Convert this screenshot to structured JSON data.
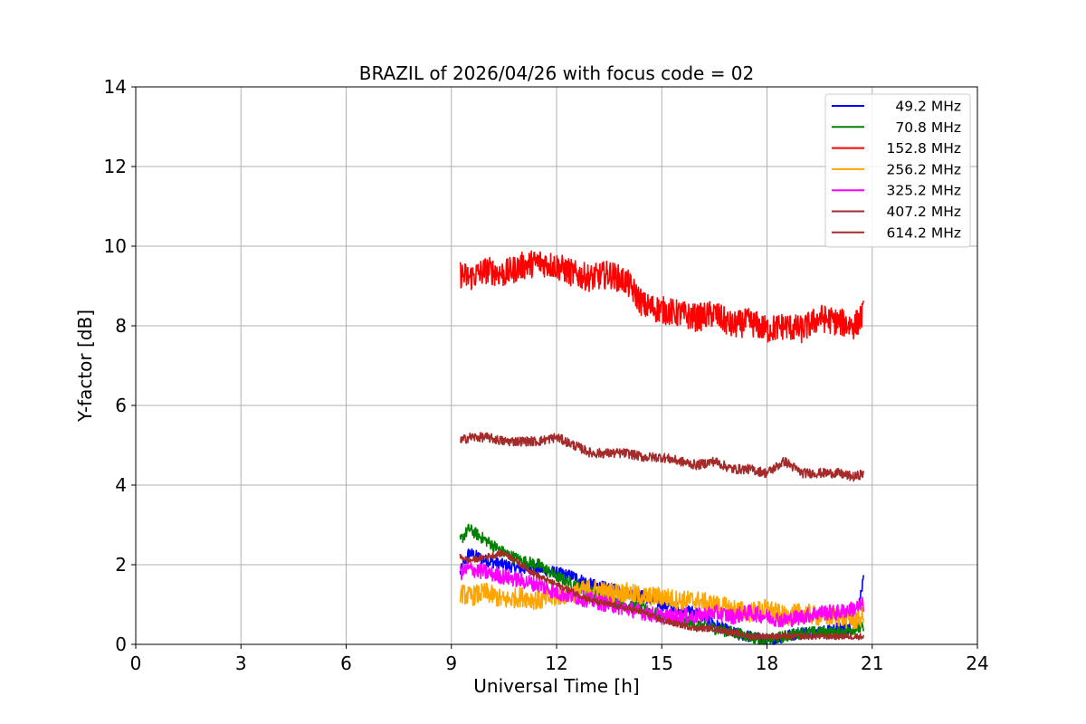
{
  "chart_data": {
    "type": "line",
    "title": "BRAZIL of 2026/04/26 with focus code = 02",
    "xlabel": "Universal Time [h]",
    "ylabel": "Y-factor [dB]",
    "xlim": [
      0,
      24
    ],
    "ylim": [
      0,
      14
    ],
    "xticks": [
      0,
      3,
      6,
      9,
      12,
      15,
      18,
      21,
      24
    ],
    "yticks": [
      0,
      2,
      4,
      6,
      8,
      10,
      12,
      14
    ],
    "grid": true,
    "legend_position": "top-right",
    "series": [
      {
        "name": " 49.2 MHz",
        "color": "#0000ff",
        "noise": 0.15,
        "x": [
          9.25,
          9.5,
          10,
          10.5,
          11,
          11.5,
          12,
          12.5,
          13,
          13.5,
          14,
          14.5,
          15,
          15.5,
          16,
          16.5,
          17,
          17.5,
          18,
          18.5,
          19,
          19.5,
          20,
          20.5,
          20.75
        ],
        "y": [
          1.8,
          2.3,
          2.1,
          2.0,
          1.9,
          1.9,
          1.8,
          1.7,
          1.5,
          1.4,
          1.3,
          1.2,
          1.0,
          0.9,
          0.8,
          0.5,
          0.3,
          0.2,
          0.1,
          0.2,
          0.3,
          0.3,
          0.4,
          0.4,
          1.6
        ]
      },
      {
        "name": " 70.8 MHz",
        "color": "#008000",
        "noise": 0.15,
        "x": [
          9.25,
          9.5,
          10,
          10.5,
          11,
          11.5,
          12,
          12.5,
          13,
          13.5,
          14,
          14.5,
          15,
          15.5,
          16,
          16.5,
          17,
          17.5,
          18,
          18.5,
          19,
          19.5,
          20,
          20.5,
          20.75
        ],
        "y": [
          2.6,
          2.9,
          2.6,
          2.3,
          2.1,
          2.0,
          1.7,
          1.5,
          1.3,
          1.1,
          1.0,
          0.9,
          0.7,
          0.6,
          0.5,
          0.4,
          0.3,
          0.2,
          0.1,
          0.2,
          0.3,
          0.3,
          0.3,
          0.4,
          0.4
        ]
      },
      {
        "name": " 152.8 MHz",
        "color": "#ff0000",
        "noise": 0.35,
        "x": [
          9.25,
          9.5,
          10,
          10.5,
          11,
          11.5,
          12,
          12.5,
          13,
          13.5,
          14,
          14.5,
          15,
          15.5,
          16,
          16.5,
          17,
          17.5,
          18,
          18.5,
          19,
          19.5,
          20,
          20.5,
          20.75
        ],
        "y": [
          9.3,
          9.2,
          9.4,
          9.3,
          9.5,
          9.6,
          9.5,
          9.3,
          9.2,
          9.3,
          9.1,
          8.5,
          8.4,
          8.3,
          8.2,
          8.3,
          8.0,
          8.1,
          7.9,
          8.0,
          7.9,
          8.2,
          8.1,
          8.0,
          8.3
        ]
      },
      {
        "name": " 256.2 MHz",
        "color": "#ffa500",
        "noise": 0.25,
        "x": [
          9.25,
          9.5,
          10,
          10.5,
          11,
          11.5,
          12,
          12.5,
          13,
          13.5,
          14,
          14.5,
          15,
          15.5,
          16,
          16.5,
          17,
          17.5,
          18,
          18.5,
          19,
          19.5,
          20,
          20.5,
          20.75
        ],
        "y": [
          1.3,
          1.2,
          1.3,
          1.1,
          1.2,
          1.1,
          1.2,
          1.3,
          1.4,
          1.3,
          1.3,
          1.2,
          1.2,
          1.1,
          1.1,
          1.0,
          0.9,
          0.8,
          0.9,
          0.7,
          0.8,
          0.7,
          0.7,
          0.6,
          0.7
        ]
      },
      {
        "name": " 325.2 MHz",
        "color": "#ff00ff",
        "noise": 0.2,
        "x": [
          9.25,
          9.5,
          10,
          10.5,
          11,
          11.5,
          12,
          12.5,
          13,
          13.5,
          14,
          14.5,
          15,
          15.5,
          16,
          16.5,
          17,
          17.5,
          18,
          18.5,
          19,
          19.5,
          20,
          20.5,
          20.75
        ],
        "y": [
          1.8,
          1.9,
          1.8,
          1.7,
          1.6,
          1.5,
          1.3,
          1.2,
          1.1,
          1.0,
          0.9,
          0.8,
          0.7,
          0.7,
          0.7,
          0.8,
          0.7,
          0.8,
          0.7,
          0.6,
          0.7,
          0.8,
          0.8,
          0.9,
          1.0
        ]
      },
      {
        "name": " 407.2 MHz",
        "color": "#a52a2a",
        "noise": 0.12,
        "x": [
          9.25,
          9.5,
          10,
          10.5,
          11,
          11.5,
          12,
          12.5,
          13,
          13.5,
          14,
          14.5,
          15,
          15.5,
          16,
          16.5,
          17,
          17.5,
          18,
          18.5,
          19,
          19.5,
          20,
          20.5,
          20.75
        ],
        "y": [
          5.1,
          5.2,
          5.2,
          5.1,
          5.1,
          5.1,
          5.2,
          5.0,
          4.8,
          4.8,
          4.8,
          4.7,
          4.7,
          4.6,
          4.5,
          4.6,
          4.4,
          4.4,
          4.3,
          4.6,
          4.3,
          4.3,
          4.3,
          4.2,
          4.3
        ]
      },
      {
        "name": " 614.2 MHz",
        "color": "#a52a2a",
        "noise": 0.08,
        "x": [
          9.25,
          9.5,
          10,
          10.5,
          11,
          11.5,
          12,
          12.5,
          13,
          13.5,
          14,
          14.5,
          15,
          15.5,
          16,
          16.5,
          17,
          17.5,
          18,
          18.5,
          19,
          19.5,
          20,
          20.5,
          20.75
        ],
        "y": [
          2.2,
          2.1,
          2.2,
          2.3,
          2.0,
          1.7,
          1.5,
          1.3,
          1.1,
          1.0,
          0.9,
          0.8,
          0.6,
          0.5,
          0.4,
          0.4,
          0.3,
          0.2,
          0.2,
          0.2,
          0.2,
          0.2,
          0.2,
          0.2,
          0.2
        ]
      }
    ]
  }
}
